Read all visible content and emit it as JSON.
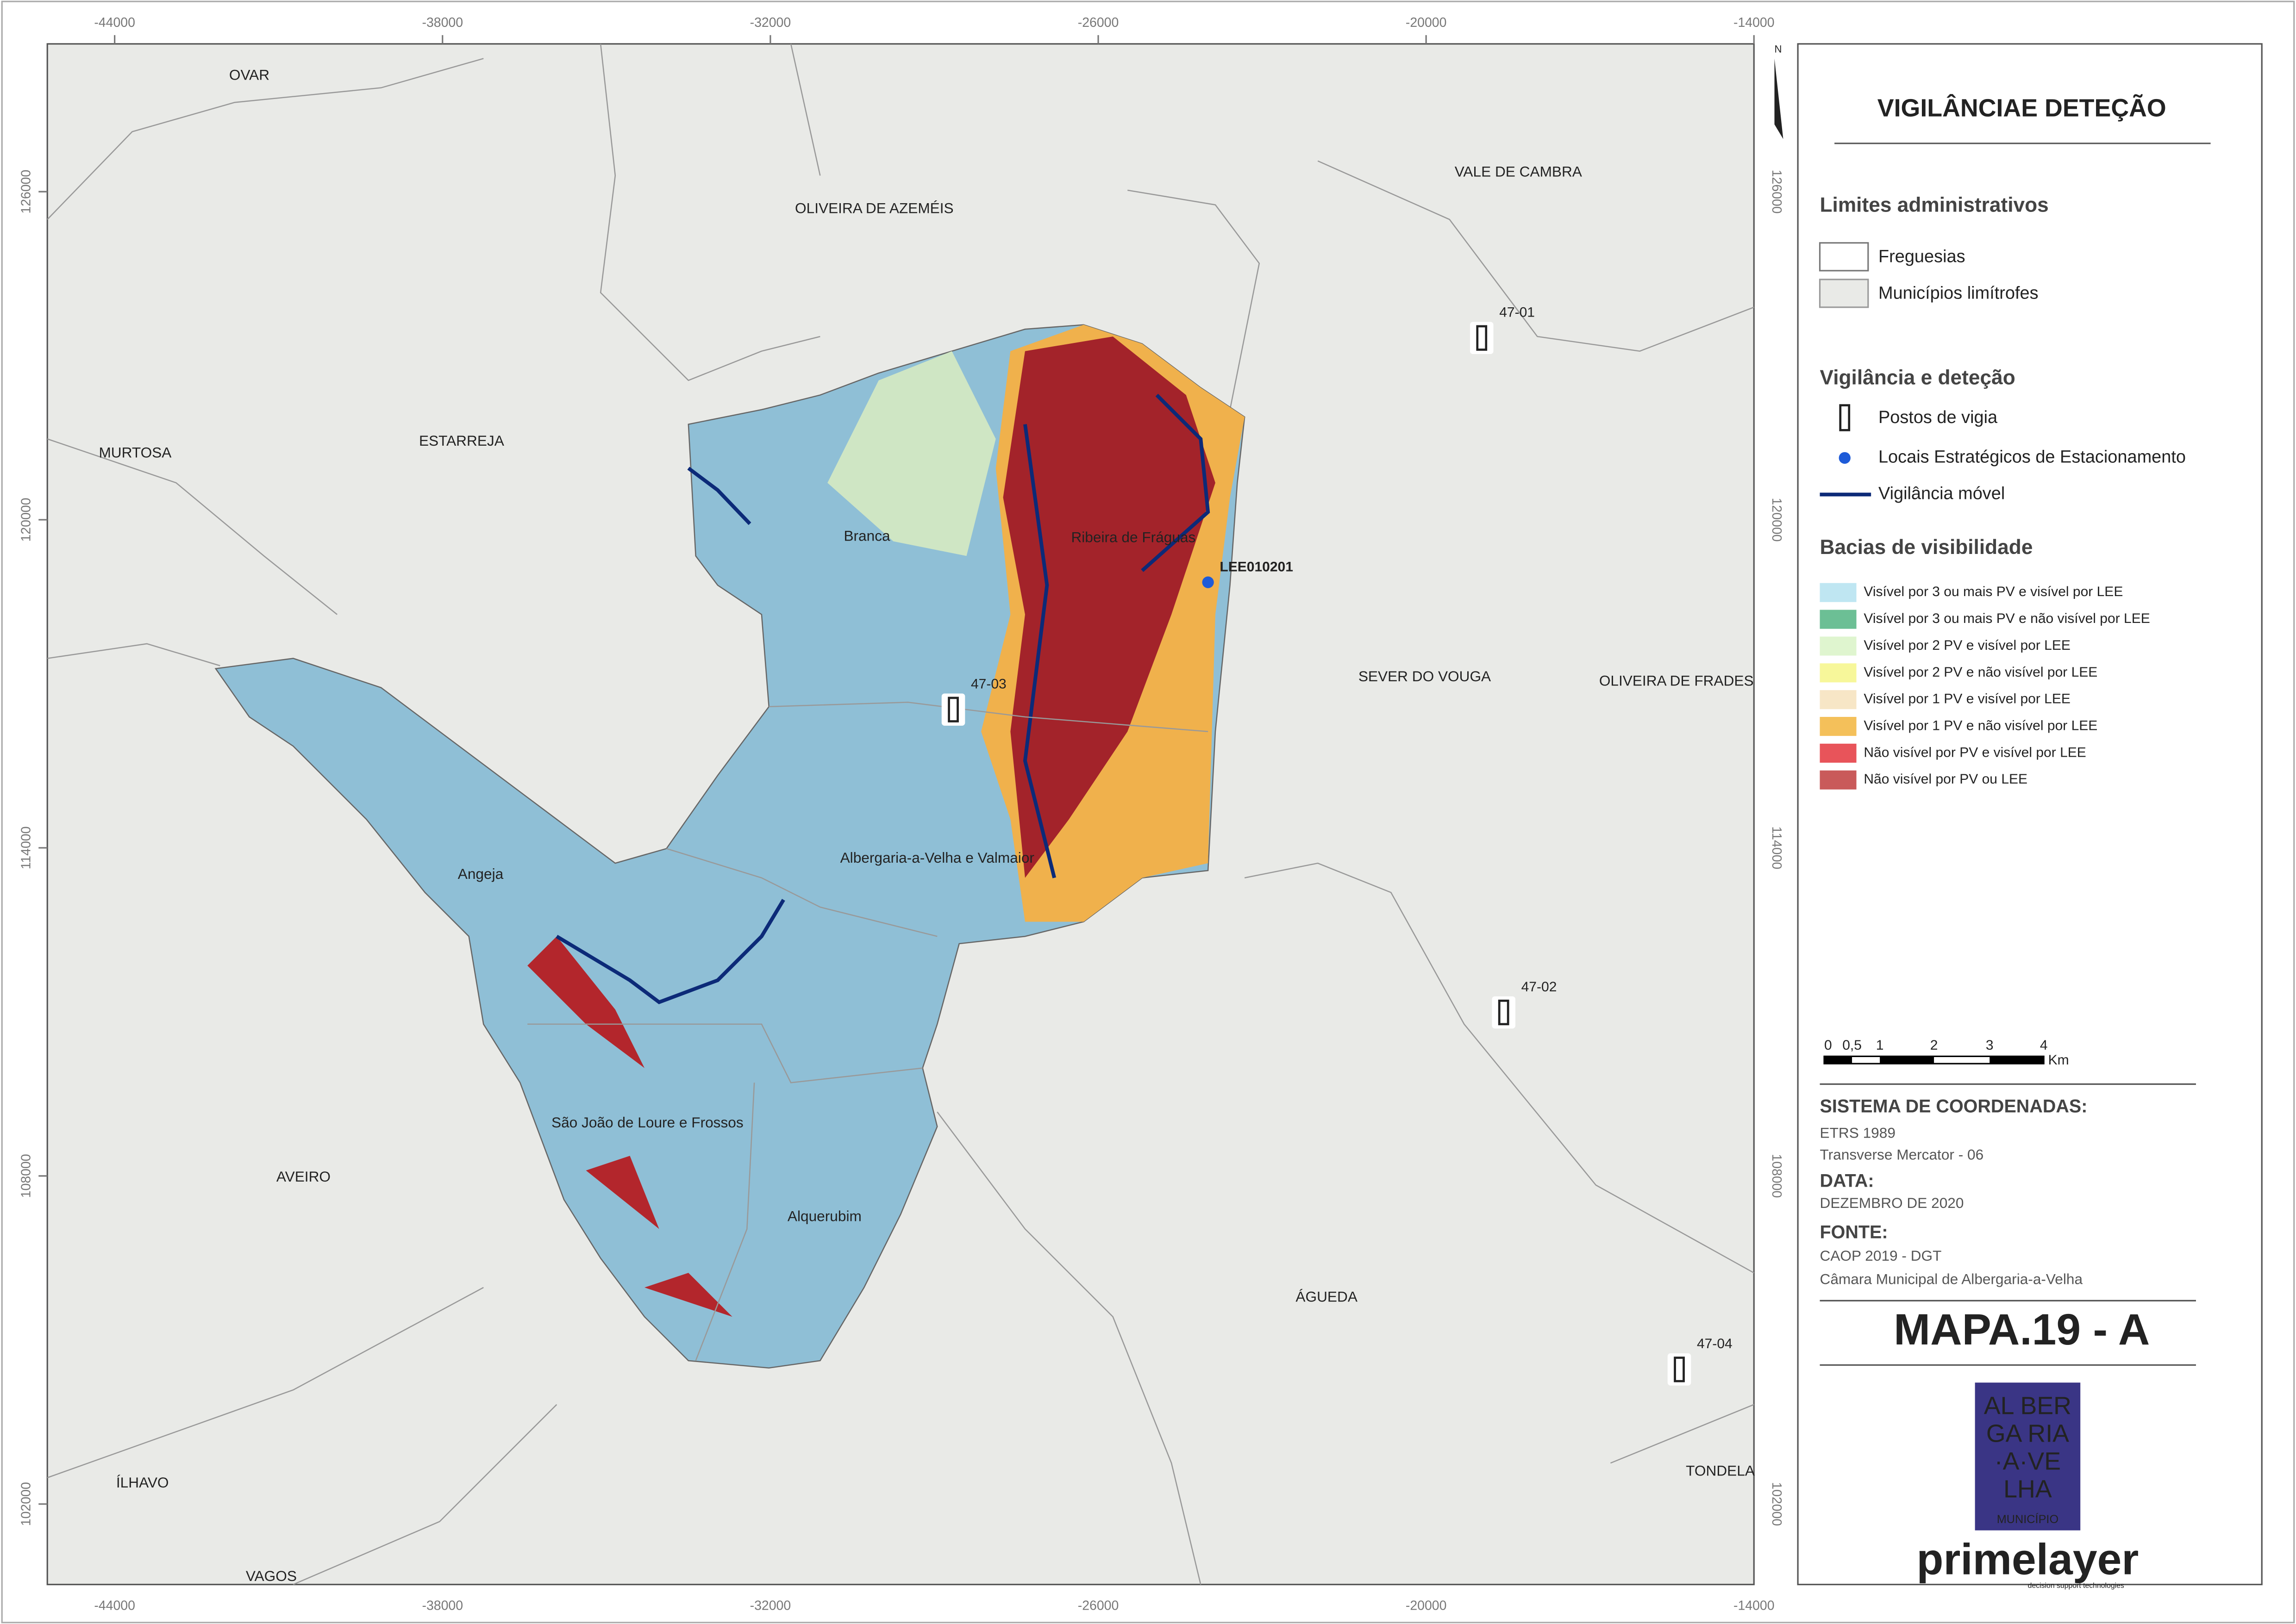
{
  "map": {
    "x_ticks": [
      -44000,
      -38000,
      -32000,
      -26000,
      -20000,
      -14000
    ],
    "y_ticks": [
      126000,
      120000,
      114000,
      108000,
      102000
    ],
    "north": "N",
    "places": [
      "OVAR",
      "OLIVEIRA DE AZEMÉIS",
      "VALE DE CAMBRA",
      "MURTOSA",
      "ESTARREJA",
      "Branca",
      "Ribeira de Fráguas",
      "SEVER DO VOUGA",
      "OLIVEIRA DE FRADES",
      "Angeja",
      "Albergaria-a-Velha e Valmaior",
      "São João de Loure e Frossos",
      "Alquerubim",
      "AVEIRO",
      "ÁGUEDA",
      "ÍLHAVO",
      "TONDELA",
      "VAGOS"
    ],
    "watchtowers": [
      "47-01",
      "47-03",
      "47-02",
      "47-04"
    ],
    "lee": "LEE010201"
  },
  "legend": {
    "title": "VIGILÂNCIAE DETEÇÃO",
    "admin": {
      "heading": "Limites administrativos",
      "items": [
        "Freguesias",
        "Municípios limítrofes"
      ]
    },
    "surveillance": {
      "heading": "Vigilância e deteção",
      "items": [
        "Postos de vigia",
        "Locais Estratégicos de Estacionamento",
        "Vigilância móvel"
      ]
    },
    "visibility": {
      "heading": "Bacias de visibilidade",
      "items": [
        {
          "label": "Visível por 3 ou mais PV e visível por LEE",
          "color": "#bfe6f2"
        },
        {
          "label": "Visível por 3 ou mais  PV e não visível por LEE",
          "color": "#6cbf95"
        },
        {
          "label": "Visível por 2 PV e visível por LEE",
          "color": "#dff5cf"
        },
        {
          "label": "Visível por 2 PV e não visível por LEE",
          "color": "#f7f79a"
        },
        {
          "label": "Visível por 1 PV e visível por LEE",
          "color": "#f7e6c6"
        },
        {
          "label": "Visível por 1 PV e não visível por LEE",
          "color": "#f4c05a"
        },
        {
          "label": "Não visível por PV e visível por LEE",
          "color": "#e8545a"
        },
        {
          "label": "Não visível por PV ou LEE",
          "color": "#c95a5a"
        }
      ]
    }
  },
  "scale": {
    "labels": [
      "0",
      "0,5",
      "1",
      "2",
      "3",
      "4"
    ],
    "unit": "Km"
  },
  "info": {
    "coords_heading": "SISTEMA DE COORDENADAS:",
    "coords": [
      "ETRS 1989",
      "Transverse Mercator - 06"
    ],
    "date_heading": "DATA:",
    "date": "DEZEMBRO DE 2020",
    "source_heading": "FONTE:",
    "sources": [
      "CAOP 2019 - DGT",
      "Câmara Municipal de Albergaria-a-Velha"
    ]
  },
  "map_id": "MAPA.19 - A",
  "logo": {
    "lines": [
      "AL BER",
      "GA RIA",
      "·A·VE",
      "LHA"
    ],
    "sub": "MUNICÍPIO"
  },
  "brand": {
    "name": "primelayer",
    "tagline": "decision support technologies"
  }
}
